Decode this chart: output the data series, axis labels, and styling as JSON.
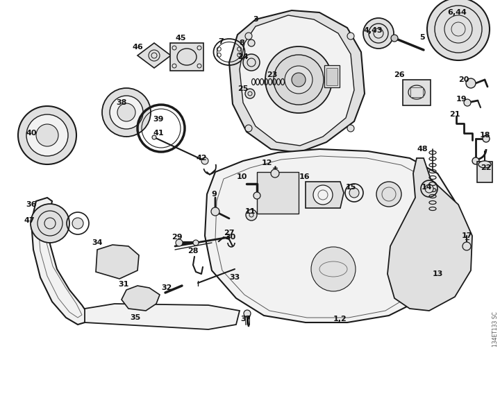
{
  "bg_color": "#ffffff",
  "watermark": "134ET133 SC",
  "line_color": "#1a1a1a",
  "fill_light": "#f2f2f2",
  "fill_mid": "#e0e0e0",
  "fill_dark": "#c8c8c8"
}
